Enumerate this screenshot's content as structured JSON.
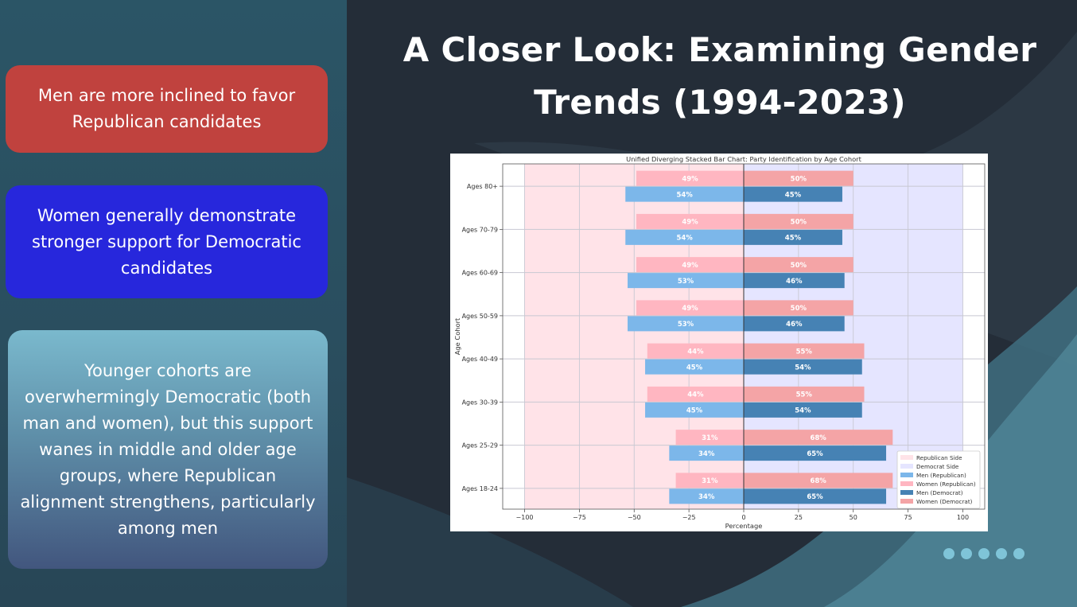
{
  "title": "A Closer Look: Examining Gender Trends (1994-2023)",
  "cards": [
    {
      "text": "Men are more inclined to favor Republican candidates",
      "color": "#c0423e"
    },
    {
      "text": "Women generally demonstrate stronger support for Democratic candidates",
      "color": "#2727dc"
    },
    {
      "text": "Younger cohorts are overwhermingly Democratic (both man and women), but this support wanes in middle and older age groups, where Republican alignment strengthens, particularly among men",
      "color": "#5e8ea8"
    }
  ],
  "pager_dots": 5,
  "chart_data": {
    "type": "bar",
    "orientation": "horizontal-diverging",
    "title": "Unified Diverging Stacked Bar Chart: Party Identification by Age Cohort",
    "xlabel": "Percentage",
    "ylabel": "Age Cohort",
    "xlim": [
      -110,
      110
    ],
    "xticks": [
      -100,
      -75,
      -50,
      -25,
      0,
      25,
      50,
      75,
      100
    ],
    "xtick_labels": [
      "−100",
      "−75",
      "−50",
      "−25",
      "0",
      "25",
      "50",
      "75",
      "100"
    ],
    "grid": true,
    "legend_position": "bottom-right",
    "categories": [
      "Ages 80+",
      "Ages 70-79",
      "Ages 60-69",
      "Ages 50-59",
      "Ages 40-49",
      "Ages 30-39",
      "Ages 25-29",
      "Ages 18-24"
    ],
    "background_regions": [
      {
        "name": "Republican Side",
        "from": -100,
        "to": 0,
        "color": "#ffe3e8"
      },
      {
        "name": "Democrat Side",
        "from": 0,
        "to": 100,
        "color": "#e5e5ff"
      }
    ],
    "series": [
      {
        "name": "Women (Republican)",
        "side": "left",
        "row": "top",
        "color": "#ffb6c1",
        "values": [
          49,
          49,
          49,
          49,
          44,
          44,
          31,
          31
        ],
        "labels": [
          "49%",
          "49%",
          "49%",
          "49%",
          "44%",
          "44%",
          "31%",
          "31%"
        ]
      },
      {
        "name": "Women (Democrat)",
        "side": "right",
        "row": "top",
        "color": "#f4a4a6",
        "values": [
          50,
          50,
          50,
          50,
          55,
          55,
          68,
          68
        ],
        "labels": [
          "50%",
          "50%",
          "50%",
          "50%",
          "55%",
          "55%",
          "68%",
          "68%"
        ]
      },
      {
        "name": "Men (Republican)",
        "side": "left",
        "row": "bottom",
        "color": "#7cb7ea",
        "values": [
          54,
          54,
          53,
          53,
          45,
          45,
          34,
          34
        ],
        "labels": [
          "54%",
          "54%",
          "53%",
          "53%",
          "45%",
          "45%",
          "34%",
          "34%"
        ]
      },
      {
        "name": "Men (Democrat)",
        "side": "right",
        "row": "bottom",
        "color": "#4682b4",
        "values": [
          45,
          45,
          46,
          46,
          54,
          54,
          65,
          65
        ],
        "labels": [
          "45%",
          "45%",
          "46%",
          "46%",
          "54%",
          "54%",
          "65%",
          "65%"
        ]
      }
    ],
    "legend": [
      {
        "label": "Republican Side",
        "color": "#ffe3e8"
      },
      {
        "label": "Democrat Side",
        "color": "#e5e5ff"
      },
      {
        "label": "Men (Republican)",
        "color": "#7cb7ea"
      },
      {
        "label": "Women (Republican)",
        "color": "#ffb6c1"
      },
      {
        "label": "Men (Democrat)",
        "color": "#4682b4"
      },
      {
        "label": "Women (Democrat)",
        "color": "#f4a4a6"
      }
    ]
  }
}
